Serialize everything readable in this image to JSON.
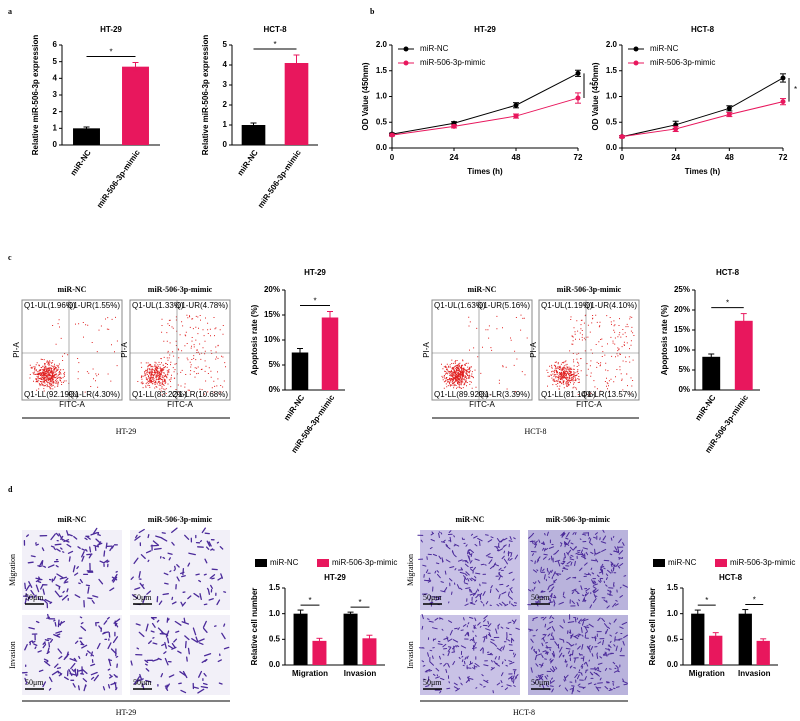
{
  "chart_data": [
    {
      "type": "bar",
      "title": "HT-29",
      "y_label": "Relative miR-506-3p expression",
      "categories": [
        "miR-NC",
        "miR-506-3p-mimic"
      ],
      "values": [
        1.0,
        4.7
      ],
      "errors": [
        0.08,
        0.25
      ],
      "colors": [
        "#000000",
        "#e8175d"
      ],
      "ylim": [
        0,
        6
      ],
      "yticks": [
        0,
        1,
        2,
        3,
        4,
        5,
        6
      ],
      "significance": "*"
    },
    {
      "type": "bar",
      "title": "HCT-8",
      "y_label": "Relative miR-506-3p expression",
      "categories": [
        "miR-NC",
        "miR-506-3p-mimic"
      ],
      "values": [
        1.0,
        4.1
      ],
      "errors": [
        0.1,
        0.4
      ],
      "colors": [
        "#000000",
        "#e8175d"
      ],
      "ylim": [
        0,
        5
      ],
      "yticks": [
        0,
        1,
        2,
        3,
        4,
        5
      ],
      "significance": "*"
    },
    {
      "type": "line",
      "title": "HT-29",
      "x_label": "Times (h)",
      "y_label": "OD Value (450nm)",
      "x": [
        0,
        24,
        48,
        72
      ],
      "series": [
        {
          "name": "miR-NC",
          "color": "#000000",
          "values": [
            0.27,
            0.48,
            0.83,
            1.45
          ],
          "errors": [
            0.02,
            0.03,
            0.05,
            0.06
          ]
        },
        {
          "name": "miR-506-3p-mimic",
          "color": "#e8175d",
          "values": [
            0.25,
            0.42,
            0.62,
            0.97
          ],
          "errors": [
            0.02,
            0.03,
            0.04,
            0.1
          ]
        }
      ],
      "xlim": [
        0,
        72
      ],
      "xticks": [
        0,
        24,
        48,
        72
      ],
      "ylim": [
        0,
        2
      ],
      "yticks": [
        {
          "value": 0,
          "label": "0.0"
        },
        0.5,
        {
          "value": 1,
          "label": "1.0"
        },
        1.5,
        {
          "value": 2,
          "label": "2.0"
        }
      ],
      "significance": "*"
    },
    {
      "type": "line",
      "title": "HCT-8",
      "x_label": "Times (h)",
      "y_label": "OD Value (450nm)",
      "x": [
        0,
        24,
        48,
        72
      ],
      "series": [
        {
          "name": "miR-NC",
          "color": "#000000",
          "values": [
            0.22,
            0.45,
            0.77,
            1.36
          ],
          "errors": [
            0.02,
            0.07,
            0.05,
            0.08
          ]
        },
        {
          "name": "miR-506-3p-mimic",
          "color": "#e8175d",
          "values": [
            0.22,
            0.37,
            0.65,
            0.9
          ],
          "errors": [
            0.02,
            0.05,
            0.04,
            0.06
          ]
        }
      ],
      "xlim": [
        0,
        72
      ],
      "xticks": [
        0,
        24,
        48,
        72
      ],
      "ylim": [
        0,
        2
      ],
      "yticks": [
        {
          "value": 0,
          "label": "0.0"
        },
        0.5,
        {
          "value": 1,
          "label": "1.0"
        },
        1.5,
        {
          "value": 2,
          "label": "2.0"
        }
      ],
      "significance": "*"
    },
    {
      "type": "bar",
      "title": "HT-29",
      "y_label": "Apoptosis rate (%)",
      "categories": [
        "miR-NC",
        "miR-506-3p-mimic"
      ],
      "values": [
        7.5,
        14.5
      ],
      "errors": [
        0.8,
        1.2
      ],
      "colors": [
        "#000000",
        "#e8175d"
      ],
      "ylim": [
        0,
        20
      ],
      "yticks": [
        {
          "value": 0,
          "label": "0%"
        },
        {
          "value": 5,
          "label": "5%"
        },
        {
          "value": 10,
          "label": "10%"
        },
        {
          "value": 15,
          "label": "15%"
        },
        {
          "value": 20,
          "label": "20%"
        }
      ],
      "significance": "*"
    },
    {
      "type": "bar",
      "title": "HCT-8",
      "y_label": "Apoptosis rate (%)",
      "categories": [
        "miR-NC",
        "miR-506-3p-mimic"
      ],
      "values": [
        8.3,
        17.3
      ],
      "errors": [
        0.7,
        1.8
      ],
      "colors": [
        "#000000",
        "#e8175d"
      ],
      "ylim": [
        0,
        25
      ],
      "yticks": [
        {
          "value": 0,
          "label": "0%"
        },
        {
          "value": 5,
          "label": "5%"
        },
        {
          "value": 10,
          "label": "10%"
        },
        {
          "value": 15,
          "label": "15%"
        },
        {
          "value": 20,
          "label": "20%"
        },
        {
          "value": 25,
          "label": "25%"
        }
      ],
      "significance": "*"
    },
    {
      "type": "bar",
      "title": "HT-29",
      "y_label": "Relative cell number",
      "categories": [
        "Migration",
        "Invasion"
      ],
      "series": [
        {
          "name": "miR-NC",
          "color": "#000000",
          "values": [
            1.0,
            1.0
          ],
          "errors": [
            0.07,
            0.03
          ]
        },
        {
          "name": "miR-506-3p-mimic",
          "color": "#e8175d",
          "values": [
            0.47,
            0.52
          ],
          "errors": [
            0.05,
            0.06
          ]
        }
      ],
      "ylim": [
        0,
        1.5
      ],
      "yticks": [
        {
          "value": 0,
          "label": "0.0"
        },
        0.5,
        {
          "value": 1,
          "label": "1.0"
        },
        1.5
      ],
      "significance": "*"
    },
    {
      "type": "bar",
      "title": "HCT-8",
      "y_label": "Relative cell number",
      "categories": [
        "Migration",
        "Invasion"
      ],
      "series": [
        {
          "name": "miR-NC",
          "color": "#000000",
          "values": [
            1.0,
            1.0
          ],
          "errors": [
            0.07,
            0.08
          ]
        },
        {
          "name": "miR-506-3p-mimic",
          "color": "#e8175d",
          "values": [
            0.57,
            0.47
          ],
          "errors": [
            0.06,
            0.04
          ]
        }
      ],
      "ylim": [
        0,
        1.5
      ],
      "yticks": [
        {
          "value": 0,
          "label": "0.0"
        },
        0.5,
        {
          "value": 1,
          "label": "1.0"
        },
        1.5
      ],
      "significance": "*"
    }
  ],
  "figure": {
    "panel_labels": [
      "a",
      "b",
      "c",
      "d"
    ],
    "flow": [
      {
        "title": "miR-NC",
        "quadrants": [
          "Q1-UL(1.96%)",
          "Q1-UR(1.55%)",
          "Q1-LL(92.19%)",
          "Q1-LR(4.30%)"
        ]
      },
      {
        "title": "miR-506-3p-mimic",
        "quadrants": [
          "Q1-UL(1.33%)",
          "Q1-UR(4.78%)",
          "Q1-LL(83.22%)",
          "Q1-LR(10.68%)"
        ]
      },
      {
        "title": "miR-NC",
        "quadrants": [
          "Q1-UL(1.63%)",
          "Q1-UR(5.16%)",
          "Q1-LL(89.92%)",
          "Q1-LR(3.39%)"
        ]
      },
      {
        "title": "miR-506-3p-mimic",
        "quadrants": [
          "Q1-UL(1.19%)",
          "Q1-UR(4.10%)",
          "Q1-LL(81.14%)",
          "Q1-LR(13.57%)"
        ]
      }
    ],
    "flow_axes": {
      "y": "PI-A",
      "x": "FITC-A"
    },
    "groups": [
      "HT-29",
      "HCT-8"
    ],
    "micro": {
      "columns": [
        "miR-NC",
        "miR-506-3p-mimic"
      ],
      "rows": [
        "Migration",
        "Invasion"
      ],
      "scale": "50μm"
    }
  }
}
